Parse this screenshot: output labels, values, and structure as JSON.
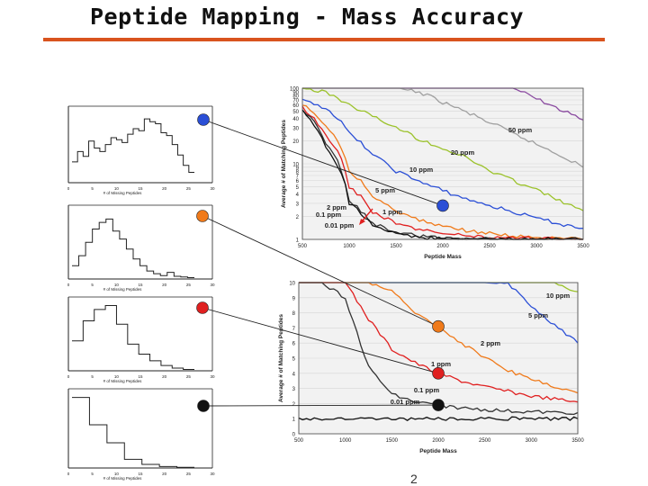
{
  "slide": {
    "title": "Peptide Mapping - Mass Accuracy",
    "page_number": "2"
  },
  "colors": {
    "accent_rule": "#d9531e",
    "blue": "#2b4fd6",
    "orange": "#f07a1a",
    "red": "#e02020",
    "black": "#111111"
  },
  "chart_data": [
    {
      "type": "line",
      "title": "",
      "xlabel": "Peptide Mass",
      "ylabel": "Average # of Matching Peptides",
      "xlim": [
        500,
        3500
      ],
      "ylim": [
        1,
        100
      ],
      "yscale": "log",
      "xticks": [
        "500",
        "1000",
        "1500",
        "2000",
        "2500",
        "3000",
        "3500"
      ],
      "yticks": [
        "1",
        "2",
        "3",
        "4",
        "5",
        "6",
        "7",
        "8",
        "9",
        "10",
        "20",
        "30",
        "40",
        "50",
        "60",
        "70",
        "80",
        "90",
        "100"
      ],
      "x": [
        500,
        750,
        1000,
        1250,
        1500,
        1750,
        2000,
        2250,
        2500,
        2750,
        3000,
        3250,
        3500
      ],
      "series": [
        {
          "name": "50 ppm",
          "color": "#8a4aa0",
          "values": [
            100,
            100,
            100,
            100,
            100,
            100,
            100,
            100,
            100,
            100,
            72,
            52,
            38
          ]
        },
        {
          "name": "20 ppm",
          "color": "#a0a0a0",
          "values": [
            100,
            100,
            100,
            100,
            100,
            88,
            65,
            48,
            35,
            25,
            18,
            13,
            9
          ]
        },
        {
          "name": "10 ppm",
          "color": "#9bc22a",
          "values": [
            100,
            88,
            60,
            42,
            30,
            21,
            16,
            12,
            8,
            6,
            4.5,
            3.2,
            2.4
          ]
        },
        {
          "name": "5 ppm",
          "color": "#2b4fd6",
          "values": [
            68,
            55,
            25,
            13,
            8,
            5.8,
            4.4,
            3.4,
            2.8,
            2.3,
            1.9,
            1.6,
            1.4
          ]
        },
        {
          "name": "2 ppm",
          "color": "#f07a1a",
          "values": [
            60,
            32,
            8,
            3.7,
            2.3,
            1.8,
            1.5,
            1.3,
            1.2,
            1.1,
            1.05,
            1.02,
            1.0
          ]
        },
        {
          "name": "1 ppm",
          "color": "#e02020",
          "values": [
            55,
            24,
            5,
            2.3,
            1.6,
            1.35,
            1.2,
            1.12,
            1.07,
            1.04,
            1.02,
            1.01,
            1.0
          ]
        },
        {
          "name": "0.1 ppm",
          "color": "#333333",
          "values": [
            52,
            18,
            3.2,
            1.6,
            1.25,
            1.1,
            1.05,
            1.02,
            1.01,
            1.0,
            1.0,
            1.0,
            1.0
          ]
        },
        {
          "name": "0.01 ppm",
          "color": "#111111",
          "values": [
            50,
            16,
            3.0,
            1.5,
            1.2,
            1.06,
            1.02,
            1.0,
            1.0,
            1.0,
            1.0,
            1.0,
            1.0
          ]
        }
      ],
      "labels": [
        "50 ppm",
        "20 ppm",
        "10 ppm",
        "5 ppm",
        "2 ppm",
        "1 ppm",
        "0.1 ppm",
        "0.01 ppm"
      ]
    },
    {
      "type": "line",
      "title": "",
      "xlabel": "Peptide Mass",
      "ylabel": "Average # of Matching Peptides",
      "xlim": [
        500,
        3500
      ],
      "ylim": [
        0,
        10
      ],
      "xticks": [
        "500",
        "1000",
        "1500",
        "2000",
        "2500",
        "3000",
        "3500"
      ],
      "yticks": [
        "0",
        "1",
        "2",
        "3",
        "4",
        "5",
        "6",
        "7",
        "8",
        "9",
        "10"
      ],
      "x": [
        500,
        750,
        1000,
        1250,
        1500,
        1750,
        2000,
        2250,
        2500,
        2750,
        3000,
        3250,
        3500
      ],
      "series": [
        {
          "name": "10 ppm",
          "color": "#9bc22a",
          "values": [
            10,
            10,
            10,
            10,
            10,
            10,
            10,
            10,
            10,
            10,
            10,
            10,
            9.4
          ]
        },
        {
          "name": "5 ppm",
          "color": "#2b4fd6",
          "values": [
            10,
            10,
            10,
            10,
            10,
            10,
            10,
            10,
            10,
            9.9,
            8.5,
            7.2,
            6.0
          ]
        },
        {
          "name": "2 ppm",
          "color": "#f07a1a",
          "values": [
            10,
            10,
            10,
            10,
            9.4,
            8.0,
            7.1,
            6.0,
            5.0,
            4.2,
            3.6,
            3.1,
            2.7
          ]
        },
        {
          "name": "1 ppm",
          "color": "#e02020",
          "values": [
            10,
            10,
            10,
            7.6,
            5.6,
            4.7,
            4.0,
            3.5,
            3.1,
            2.8,
            2.5,
            2.3,
            2.1
          ]
        },
        {
          "name": "0.1 ppm",
          "color": "#333333",
          "values": [
            10,
            10,
            9.0,
            4.4,
            2.6,
            2.1,
            1.9,
            1.7,
            1.6,
            1.5,
            1.45,
            1.4,
            1.4
          ]
        },
        {
          "name": "0.01 ppm",
          "color": "#111111",
          "values": [
            1,
            1,
            1,
            1,
            1,
            1,
            1,
            1,
            1,
            1,
            1,
            1,
            1
          ]
        }
      ],
      "labels": [
        "10 ppm",
        "5 ppm",
        "2 ppm",
        "1 ppm",
        "0.1 ppm",
        "0.01 ppm"
      ]
    }
  ],
  "mini_histograms": [
    {
      "name": "histogram-blue",
      "marker": "#2b4fd6",
      "xlabel": "# of Missing Peptides",
      "ticks": [
        "0",
        "5",
        "10",
        "15",
        "20",
        "25",
        "30"
      ],
      "values": [
        0.3,
        0.45,
        0.38,
        0.6,
        0.5,
        0.45,
        0.55,
        0.65,
        0.62,
        0.58,
        0.7,
        0.78,
        0.75,
        0.92,
        0.88,
        0.85,
        0.72,
        0.68,
        0.55,
        0.4,
        0.25,
        0.15
      ]
    },
    {
      "name": "histogram-orange",
      "marker": "#f07a1a",
      "xlabel": "# of Missing Peptides",
      "ticks": [
        "0",
        "5",
        "10",
        "15",
        "20",
        "25",
        "30"
      ],
      "values": [
        0.2,
        0.35,
        0.55,
        0.75,
        0.85,
        0.9,
        0.72,
        0.6,
        0.45,
        0.3,
        0.2,
        0.12,
        0.08,
        0.05,
        0.1,
        0.04,
        0.03,
        0.02
      ]
    },
    {
      "name": "histogram-red",
      "marker": "#e02020",
      "xlabel": "# of Missing Peptides",
      "ticks": [
        "0",
        "5",
        "10",
        "15",
        "20",
        "25",
        "30"
      ],
      "values": [
        0.45,
        0.75,
        0.92,
        0.98,
        0.7,
        0.4,
        0.25,
        0.15,
        0.08,
        0.04,
        0.02
      ]
    },
    {
      "name": "histogram-black",
      "marker": "#111111",
      "xlabel": "# of Missing Peptides",
      "ticks": [
        "0",
        "5",
        "10",
        "15",
        "20",
        "25",
        "30"
      ],
      "values": [
        0.98,
        0.6,
        0.35,
        0.12,
        0.05,
        0.02,
        0.01
      ]
    }
  ],
  "markers": [
    {
      "name": "marker-blue",
      "color": "#2b4fd6"
    },
    {
      "name": "marker-orange",
      "color": "#f07a1a"
    },
    {
      "name": "marker-red",
      "color": "#e02020"
    },
    {
      "name": "marker-black",
      "color": "#111111"
    }
  ]
}
